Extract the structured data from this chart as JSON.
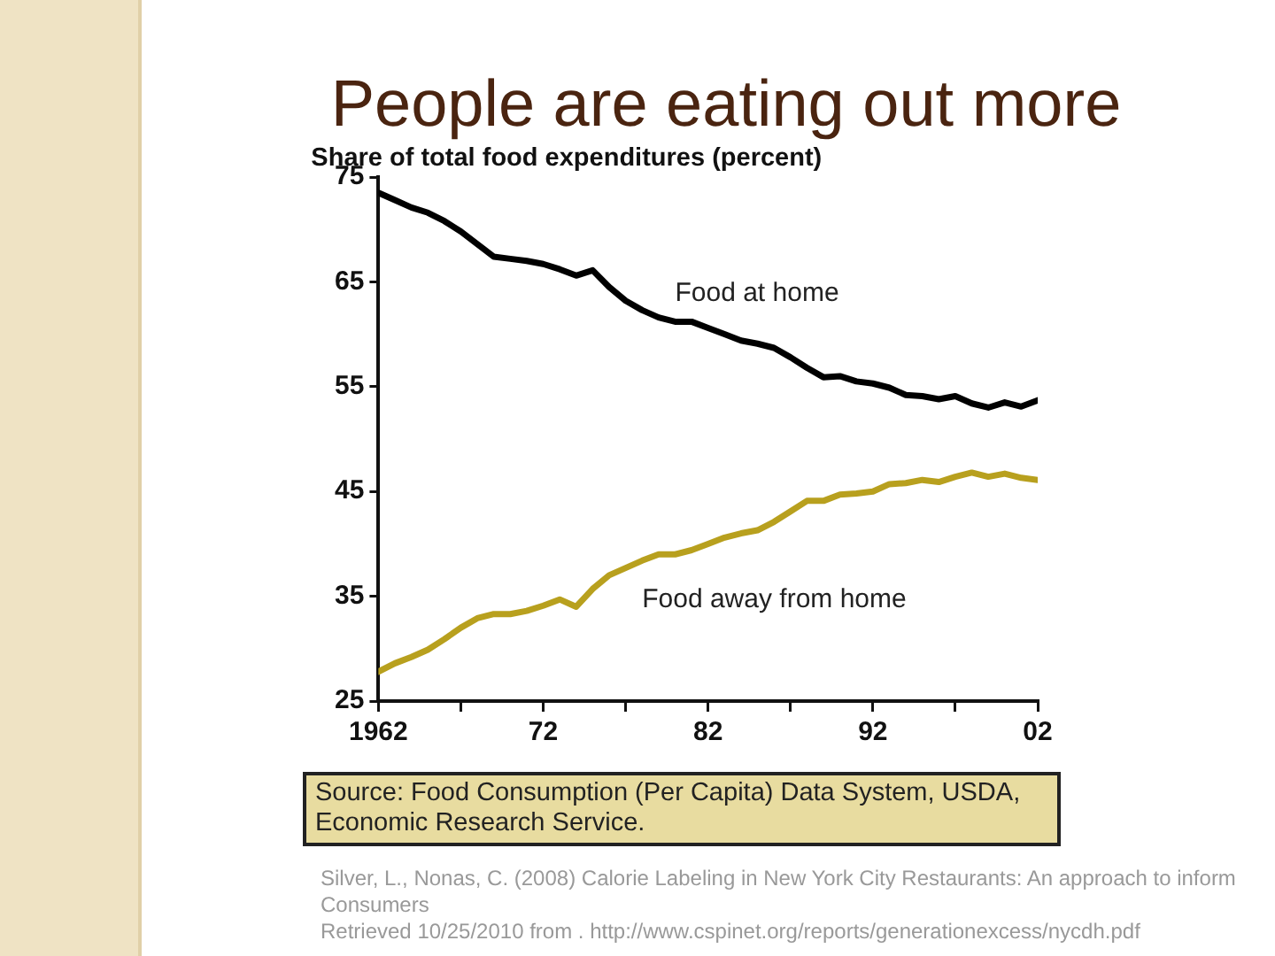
{
  "chart_data": {
    "type": "line",
    "title": "People are eating out more",
    "ylabel": "Share of total food expenditures (percent)",
    "x": [
      1962,
      1963,
      1964,
      1965,
      1966,
      1967,
      1968,
      1969,
      1970,
      1971,
      1972,
      1973,
      1974,
      1975,
      1976,
      1977,
      1978,
      1979,
      1980,
      1981,
      1982,
      1983,
      1984,
      1985,
      1986,
      1987,
      1988,
      1989,
      1990,
      1991,
      1992,
      1993,
      1994,
      1995,
      1996,
      1997,
      1998,
      1999,
      2000,
      2001,
      2002
    ],
    "series": [
      {
        "name": "Food at home",
        "color": "#000000",
        "values": [
          73.5,
          72.8,
          72.1,
          71.6,
          70.8,
          69.8,
          68.6,
          67.4,
          67.2,
          67.0,
          66.7,
          66.2,
          65.6,
          66.1,
          64.5,
          63.2,
          62.3,
          61.6,
          61.2,
          61.2,
          60.6,
          60.0,
          59.4,
          59.1,
          58.7,
          57.8,
          56.8,
          55.9,
          56.0,
          55.5,
          55.3,
          54.9,
          54.2,
          54.1,
          53.8,
          54.1,
          53.4,
          53.0,
          53.5,
          53.1,
          53.7
        ]
      },
      {
        "name": "Food away from home",
        "color": "#b8a01e",
        "values": [
          27.8,
          28.6,
          29.2,
          29.9,
          30.9,
          32.0,
          32.9,
          33.3,
          33.3,
          33.6,
          34.1,
          34.7,
          34.0,
          35.7,
          37.0,
          37.7,
          38.4,
          39.0,
          39.0,
          39.4,
          40.0,
          40.6,
          41.0,
          41.3,
          42.1,
          43.1,
          44.1,
          44.1,
          44.7,
          44.8,
          45.0,
          45.7,
          45.8,
          46.1,
          45.9,
          46.4,
          46.8,
          46.4,
          46.7,
          46.3,
          46.1
        ]
      }
    ],
    "xlim": [
      1962,
      2002
    ],
    "xticks": [
      1962,
      {
        "value": 1967,
        "label": null
      },
      {
        "value": 1972,
        "label": "72"
      },
      {
        "value": 1977,
        "label": null
      },
      {
        "value": 1982,
        "label": "82"
      },
      {
        "value": 1987,
        "label": null
      },
      {
        "value": 1992,
        "label": "92"
      },
      {
        "value": 1997,
        "label": null
      },
      {
        "value": 2002,
        "label": "02"
      }
    ],
    "ylim": [
      25,
      75
    ],
    "yticks": [
      25,
      35,
      45,
      55,
      65,
      75
    ],
    "legend": false,
    "marker": "none",
    "line_style": "solid",
    "annotations": [
      "Source: Food Consumption (Per Capita) Data System, USDA, Economic Research Service.",
      "Silver, L., Nonas, C. (2008) Calorie Labeling in New York City Restaurants: An approach to inform Consumers",
      "Retrieved 10/25/2010 from . http://www.cspinet.org/reports/generationexcess/nycdh.pdf"
    ]
  }
}
